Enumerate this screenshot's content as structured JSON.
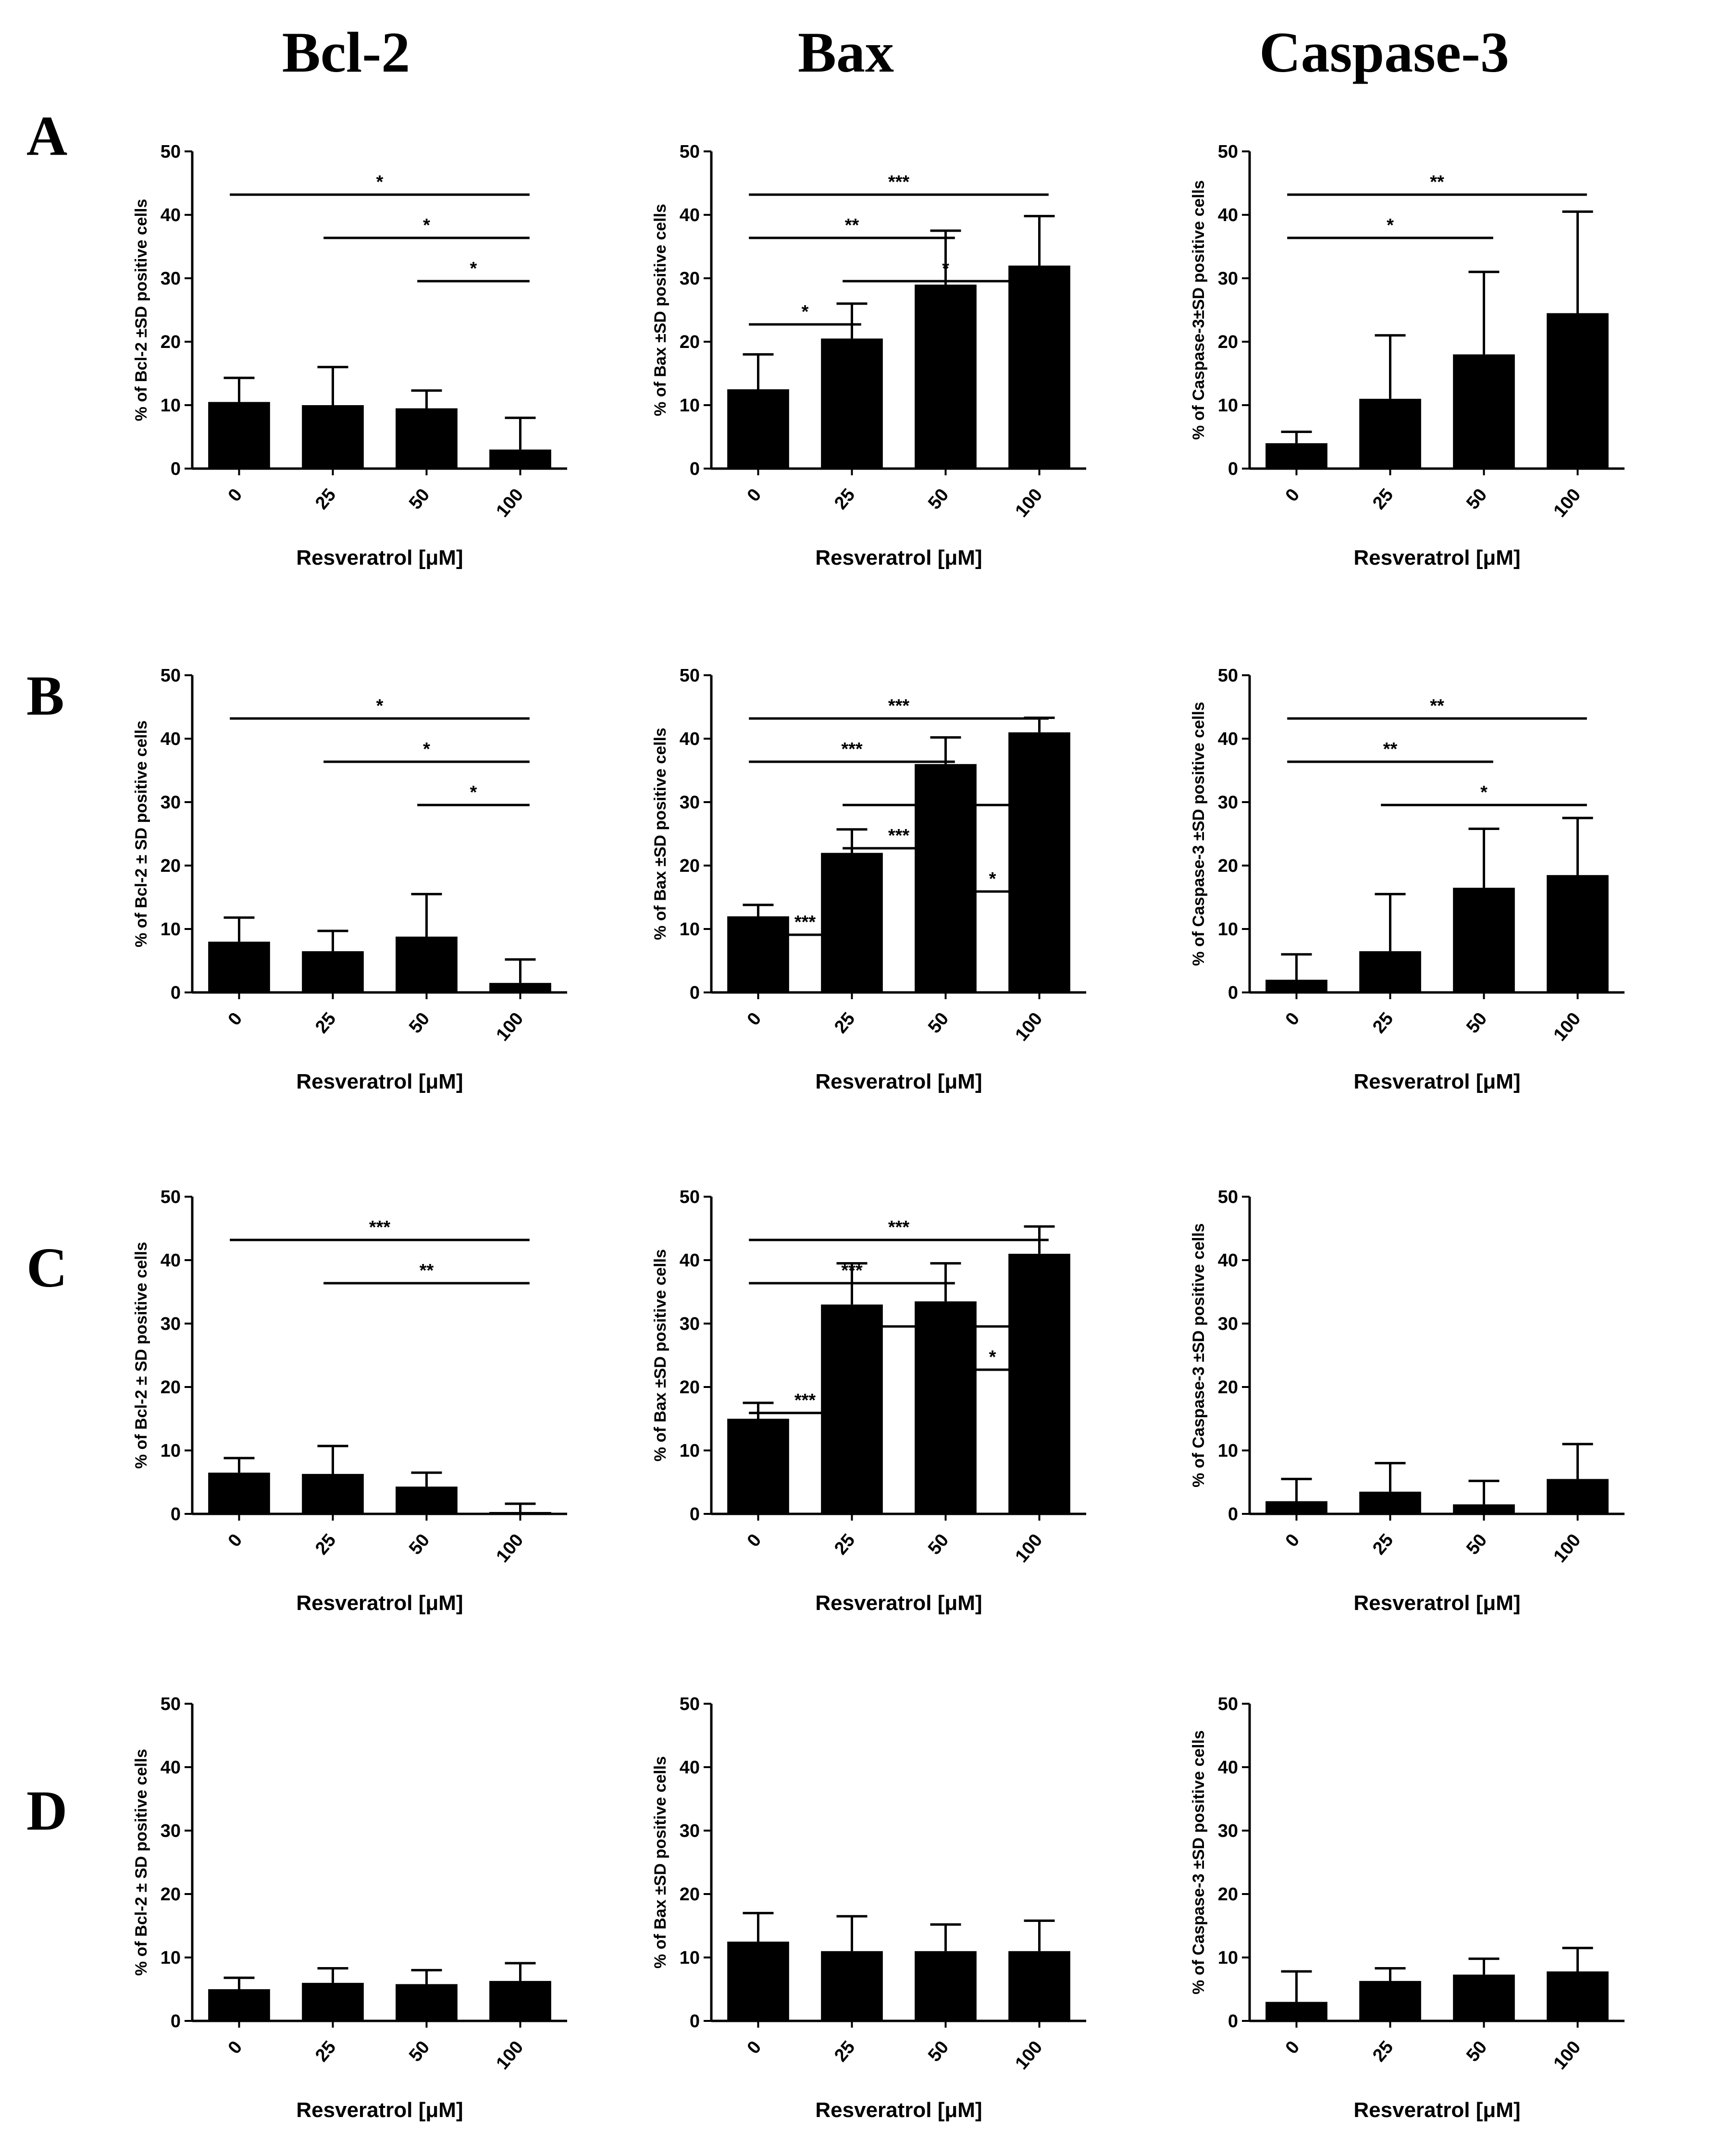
{
  "column_titles": [
    "Bcl-2",
    "Bax",
    "Caspase-3"
  ],
  "row_labels": [
    "A",
    "B",
    "C",
    "D"
  ],
  "colors": {
    "bar": "#000000",
    "background": "#ffffff"
  },
  "chart_data": [
    {
      "id": "A-bcl2",
      "type": "bar",
      "row": "A",
      "col": 0,
      "categories": [
        "0",
        "25",
        "50",
        "100"
      ],
      "values": [
        10.5,
        10,
        9.5,
        3
      ],
      "errors": [
        3.8,
        6,
        2.8,
        5
      ],
      "ylim": [
        0,
        50
      ],
      "yticks": [
        0,
        10,
        20,
        30,
        40,
        50
      ],
      "ylabel": "% of Bcl-2 ±SD positive cells",
      "xlabel": "Resveratrol [μM]",
      "significance": [
        {
          "from": 0,
          "to": 3,
          "label": "*"
        },
        {
          "from": 1,
          "to": 3,
          "label": "*"
        },
        {
          "from": 2,
          "to": 3,
          "label": "*"
        }
      ]
    },
    {
      "id": "A-bax",
      "type": "bar",
      "row": "A",
      "col": 1,
      "categories": [
        "0",
        "25",
        "50",
        "100"
      ],
      "values": [
        12.5,
        20.5,
        29,
        32
      ],
      "errors": [
        5.5,
        5.5,
        8.5,
        7.8
      ],
      "ylim": [
        0,
        50
      ],
      "yticks": [
        0,
        10,
        20,
        30,
        40,
        50
      ],
      "ylabel": "% of Bax ±SD positive cells",
      "xlabel": "Resveratrol [μM]",
      "significance": [
        {
          "from": 0,
          "to": 3,
          "label": "***"
        },
        {
          "from": 0,
          "to": 2,
          "label": "**"
        },
        {
          "from": 1,
          "to": 3,
          "label": "*"
        },
        {
          "from": 0,
          "to": 1,
          "label": "*"
        }
      ]
    },
    {
      "id": "A-casp3",
      "type": "bar",
      "row": "A",
      "col": 2,
      "categories": [
        "0",
        "25",
        "50",
        "100"
      ],
      "values": [
        4,
        11,
        18,
        24.5
      ],
      "errors": [
        1.8,
        10,
        13,
        16
      ],
      "ylim": [
        0,
        50
      ],
      "yticks": [
        0,
        10,
        20,
        30,
        40,
        50
      ],
      "ylabel": "% of Caspase-3±SD positive cells",
      "xlabel": "Resveratrol [μM]",
      "significance": [
        {
          "from": 0,
          "to": 3,
          "label": "**"
        },
        {
          "from": 0,
          "to": 2,
          "label": "*"
        }
      ]
    },
    {
      "id": "B-bcl2",
      "type": "bar",
      "row": "B",
      "col": 0,
      "categories": [
        "0",
        "25",
        "50",
        "100"
      ],
      "values": [
        8,
        6.5,
        8.8,
        1.5
      ],
      "errors": [
        3.8,
        3.2,
        6.7,
        3.7
      ],
      "ylim": [
        0,
        50
      ],
      "yticks": [
        0,
        10,
        20,
        30,
        40,
        50
      ],
      "ylabel": "% of Bcl-2 ± SD positive cells",
      "xlabel": "Resveratrol [μM]",
      "significance": [
        {
          "from": 0,
          "to": 3,
          "label": "*"
        },
        {
          "from": 1,
          "to": 3,
          "label": "*"
        },
        {
          "from": 2,
          "to": 3,
          "label": "*"
        }
      ]
    },
    {
      "id": "B-bax",
      "type": "bar",
      "row": "B",
      "col": 1,
      "categories": [
        "0",
        "25",
        "50",
        "100"
      ],
      "values": [
        12,
        22,
        36,
        41
      ],
      "errors": [
        1.8,
        3.7,
        4.2,
        2.3
      ],
      "ylim": [
        0,
        50
      ],
      "yticks": [
        0,
        10,
        20,
        30,
        40,
        50
      ],
      "ylabel": "% of Bax ±SD positive cells",
      "xlabel": "Resveratrol [μM]",
      "significance": [
        {
          "from": 0,
          "to": 3,
          "label": "***"
        },
        {
          "from": 0,
          "to": 2,
          "label": "***"
        },
        {
          "from": 1,
          "to": 3,
          "label": "***"
        },
        {
          "from": 1,
          "to": 2,
          "label": "***"
        },
        {
          "from": 2,
          "to": 3,
          "label": "*"
        },
        {
          "from": 0,
          "to": 1,
          "label": "***"
        }
      ]
    },
    {
      "id": "B-casp3",
      "type": "bar",
      "row": "B",
      "col": 2,
      "categories": [
        "0",
        "25",
        "50",
        "100"
      ],
      "values": [
        2,
        6.5,
        16.5,
        18.5
      ],
      "errors": [
        4,
        9,
        9.3,
        9
      ],
      "ylim": [
        0,
        50
      ],
      "yticks": [
        0,
        10,
        20,
        30,
        40,
        50
      ],
      "ylabel": "% of Caspase-3 ±SD positive cells",
      "xlabel": "Resveratrol [μM]",
      "significance": [
        {
          "from": 0,
          "to": 3,
          "label": "**"
        },
        {
          "from": 0,
          "to": 2,
          "label": "**"
        },
        {
          "from": 1,
          "to": 3,
          "label": "*"
        }
      ]
    },
    {
      "id": "C-bcl2",
      "type": "bar",
      "row": "C",
      "col": 0,
      "categories": [
        "0",
        "25",
        "50",
        "100"
      ],
      "values": [
        6.5,
        6.3,
        4.3,
        0.3
      ],
      "errors": [
        2.3,
        4.4,
        2.2,
        1.3
      ],
      "ylim": [
        0,
        50
      ],
      "yticks": [
        0,
        10,
        20,
        30,
        40,
        50
      ],
      "ylabel": "% of Bcl-2 ± SD positive cells",
      "xlabel": "Resveratrol [μM]",
      "significance": [
        {
          "from": 0,
          "to": 3,
          "label": "***"
        },
        {
          "from": 1,
          "to": 3,
          "label": "**"
        }
      ]
    },
    {
      "id": "C-bax",
      "type": "bar",
      "row": "C",
      "col": 1,
      "categories": [
        "0",
        "25",
        "50",
        "100"
      ],
      "values": [
        15,
        33,
        33.5,
        41
      ],
      "errors": [
        2.5,
        6.5,
        6,
        4.3
      ],
      "ylim": [
        0,
        50
      ],
      "yticks": [
        0,
        10,
        20,
        30,
        40,
        50
      ],
      "ylabel": "% of Bax ±SD positive cells",
      "xlabel": "Resveratrol [μM]",
      "significance": [
        {
          "from": 0,
          "to": 3,
          "label": "***"
        },
        {
          "from": 0,
          "to": 2,
          "label": "***"
        },
        {
          "from": 2,
          "to": 3,
          "label": "*"
        },
        {
          "from": 1,
          "to": 3,
          "label": "*"
        },
        {
          "from": 0,
          "to": 1,
          "label": "***"
        }
      ]
    },
    {
      "id": "C-casp3",
      "type": "bar",
      "row": "C",
      "col": 2,
      "categories": [
        "0",
        "25",
        "50",
        "100"
      ],
      "values": [
        2,
        3.5,
        1.5,
        5.5
      ],
      "errors": [
        3.5,
        4.5,
        3.7,
        5.5
      ],
      "ylim": [
        0,
        50
      ],
      "yticks": [
        0,
        10,
        20,
        30,
        40,
        50
      ],
      "ylabel": "% of Caspase-3 ±SD positive cells",
      "xlabel": "Resveratrol [μM]",
      "significance": []
    },
    {
      "id": "D-bcl2",
      "type": "bar",
      "row": "D",
      "col": 0,
      "categories": [
        "0",
        "25",
        "50",
        "100"
      ],
      "values": [
        5,
        6,
        5.8,
        6.3
      ],
      "errors": [
        1.8,
        2.3,
        2.2,
        2.8
      ],
      "ylim": [
        0,
        50
      ],
      "yticks": [
        0,
        10,
        20,
        30,
        40,
        50
      ],
      "ylabel": "% of Bcl-2 ± SD positive cells",
      "xlabel": "Resveratrol [μM]",
      "significance": []
    },
    {
      "id": "D-bax",
      "type": "bar",
      "row": "D",
      "col": 1,
      "categories": [
        "0",
        "25",
        "50",
        "100"
      ],
      "values": [
        12.5,
        11,
        11,
        11
      ],
      "errors": [
        4.5,
        5.5,
        4.2,
        4.8
      ],
      "ylim": [
        0,
        50
      ],
      "yticks": [
        0,
        10,
        20,
        30,
        40,
        50
      ],
      "ylabel": "% of Bax ±SD positive cells",
      "xlabel": "Resveratrol [μM]",
      "significance": []
    },
    {
      "id": "D-casp3",
      "type": "bar",
      "row": "D",
      "col": 2,
      "categories": [
        "0",
        "25",
        "50",
        "100"
      ],
      "values": [
        3,
        6.3,
        7.3,
        7.8
      ],
      "errors": [
        4.8,
        2,
        2.5,
        3.7
      ],
      "ylim": [
        0,
        50
      ],
      "yticks": [
        0,
        10,
        20,
        30,
        40,
        50
      ],
      "ylabel": "% of Caspase-3 ±SD positive cells",
      "xlabel": "Resveratrol [μM]",
      "significance": []
    }
  ]
}
